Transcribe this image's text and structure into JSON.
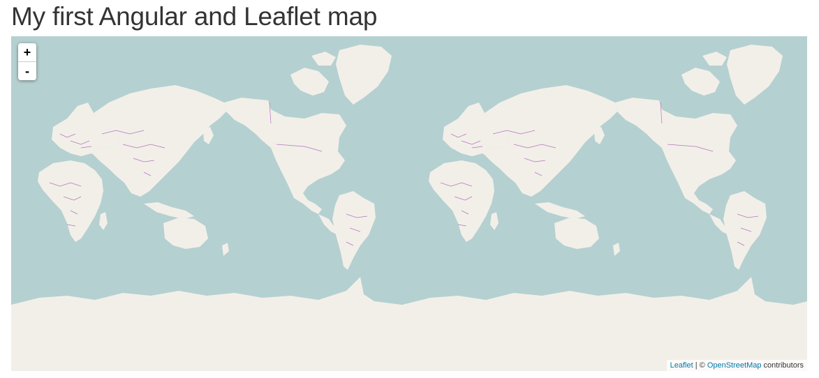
{
  "header": {
    "title": "My first Angular and Leaflet map"
  },
  "map": {
    "colors": {
      "ocean": "#b5d0d0",
      "land": "#f2efe9",
      "border": "#b373bd"
    },
    "zoom_control": {
      "zoom_in_label": "+",
      "zoom_out_label": "-"
    },
    "attribution": {
      "leaflet_link": "Leaflet",
      "separator": " | © ",
      "osm_link": "OpenStreetMap",
      "contributors": " contributors"
    }
  }
}
